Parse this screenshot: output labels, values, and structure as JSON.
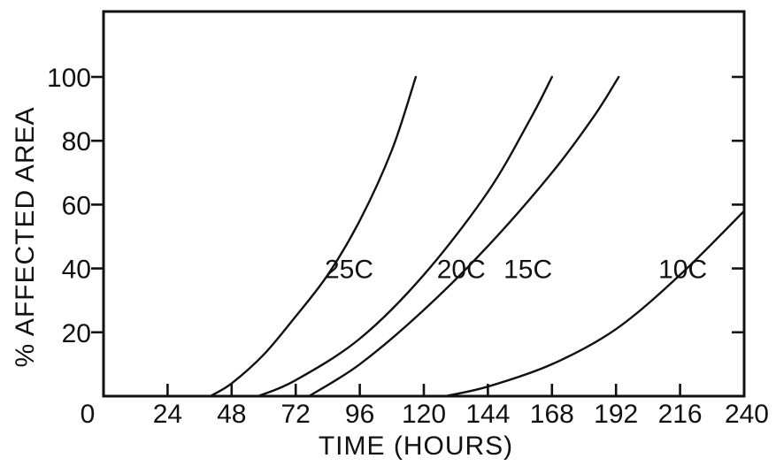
{
  "chart_data": {
    "type": "line",
    "title": "",
    "xlabel": "TIME (HOURS)",
    "ylabel": "% AFFECTED AREA",
    "xlim": [
      0,
      240
    ],
    "ylim": [
      0,
      100
    ],
    "x_ticks": [
      0,
      24,
      48,
      72,
      96,
      120,
      144,
      168,
      192,
      216,
      240
    ],
    "y_ticks": [
      20,
      40,
      60,
      80,
      100
    ],
    "grid": false,
    "legend": "none",
    "series": [
      {
        "name": "25C",
        "x": [
          40,
          48,
          60,
          72,
          84,
          96,
          108,
          117
        ],
        "y": [
          0,
          4,
          13,
          25,
          38,
          55,
          77,
          100
        ]
      },
      {
        "name": "20C",
        "x": [
          58,
          72,
          96,
          120,
          144,
          160,
          168
        ],
        "y": [
          0,
          5,
          18,
          38,
          64,
          87,
          100
        ]
      },
      {
        "name": "15C",
        "x": [
          77,
          96,
          120,
          144,
          168,
          184,
          193
        ],
        "y": [
          0,
          10,
          27,
          47,
          70,
          88,
          100
        ]
      },
      {
        "name": "10C",
        "x": [
          128,
          144,
          168,
          192,
          216,
          240
        ],
        "y": [
          0,
          3,
          10,
          21,
          38,
          58
        ]
      }
    ]
  }
}
